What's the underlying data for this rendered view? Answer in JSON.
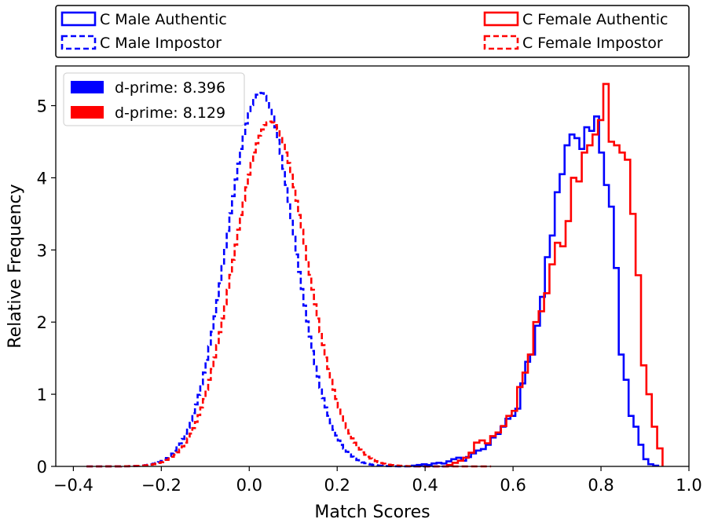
{
  "chart_data": {
    "type": "histogram-step",
    "xlabel": "Match Scores",
    "ylabel": "Relative Frequency",
    "xlim": [
      -0.44,
      1.0
    ],
    "ylim": [
      0,
      5.55
    ],
    "xticks": [
      -0.4,
      -0.2,
      0.0,
      0.2,
      0.4,
      0.6,
      0.8,
      1.0
    ],
    "xtick_labels": [
      "−0.4",
      "−0.2",
      "0.0",
      "0.2",
      "0.4",
      "0.6",
      "0.8",
      "1.0"
    ],
    "yticks": [
      0,
      1,
      2,
      3,
      4,
      5
    ],
    "ytick_labels": [
      "0",
      "1",
      "2",
      "3",
      "4",
      "5"
    ],
    "top_legend": [
      {
        "label": "C Male Authentic",
        "color": "#0000ff",
        "dashed": false
      },
      {
        "label": "C Female Authentic",
        "color": "#ff0000",
        "dashed": false
      },
      {
        "label": "C Male Impostor",
        "color": "#0000ff",
        "dashed": true
      },
      {
        "label": "C Female Impostor",
        "color": "#ff0000",
        "dashed": true
      }
    ],
    "inner_legend": [
      {
        "label": "d-prime: 8.396",
        "color": "#0000ff"
      },
      {
        "label": "d-prime: 8.129",
        "color": "#ff0000"
      }
    ],
    "series": [
      {
        "name": "C Male Impostor",
        "color": "#0000ff",
        "dashed": true,
        "kind": "impostor",
        "bins": {
          "start": -0.37,
          "end": 0.46,
          "step": 0.006
        },
        "gaussian": {
          "mean": 0.025,
          "sd": 0.077,
          "peak": 5.18
        }
      },
      {
        "name": "C Female Impostor",
        "color": "#ff0000",
        "dashed": true,
        "kind": "impostor",
        "bins": {
          "start": -0.37,
          "end": 0.55,
          "step": 0.006
        },
        "gaussian": {
          "mean": 0.047,
          "sd": 0.083,
          "peak": 4.78
        }
      },
      {
        "name": "C Male Authentic",
        "color": "#0000ff",
        "dashed": false,
        "kind": "authentic",
        "bins": {
          "start": 0.37,
          "end": 0.93,
          "step": 0.0125
        },
        "values": [
          0.01,
          0.02,
          0.03,
          0.02,
          0.04,
          0.05,
          0.04,
          0.07,
          0.1,
          0.12,
          0.08,
          0.13,
          0.18,
          0.22,
          0.24,
          0.3,
          0.4,
          0.45,
          0.55,
          0.66,
          0.7,
          0.8,
          1.15,
          1.45,
          1.55,
          1.95,
          2.35,
          2.9,
          3.2,
          3.8,
          4.05,
          4.45,
          4.6,
          4.55,
          4.4,
          4.7,
          4.65,
          4.85,
          4.35,
          3.9,
          3.6,
          2.75,
          1.55,
          1.2,
          0.7,
          0.55,
          0.3,
          0.1,
          0.03,
          0.01
        ]
      },
      {
        "name": "C Female Authentic",
        "color": "#ff0000",
        "dashed": false,
        "kind": "authentic",
        "bins": {
          "start": 0.45,
          "end": 0.94,
          "step": 0.0125
        },
        "values": [
          0.02,
          0.05,
          0.08,
          0.12,
          0.19,
          0.33,
          0.36,
          0.32,
          0.42,
          0.47,
          0.56,
          0.7,
          0.77,
          1.1,
          1.3,
          1.55,
          2.0,
          2.15,
          2.4,
          2.8,
          3.1,
          3.05,
          3.4,
          4.0,
          3.95,
          4.35,
          4.45,
          4.6,
          4.8,
          5.3,
          4.5,
          4.45,
          4.35,
          4.25,
          3.5,
          2.65,
          1.4,
          1.0,
          0.55,
          0.25
        ]
      }
    ]
  }
}
